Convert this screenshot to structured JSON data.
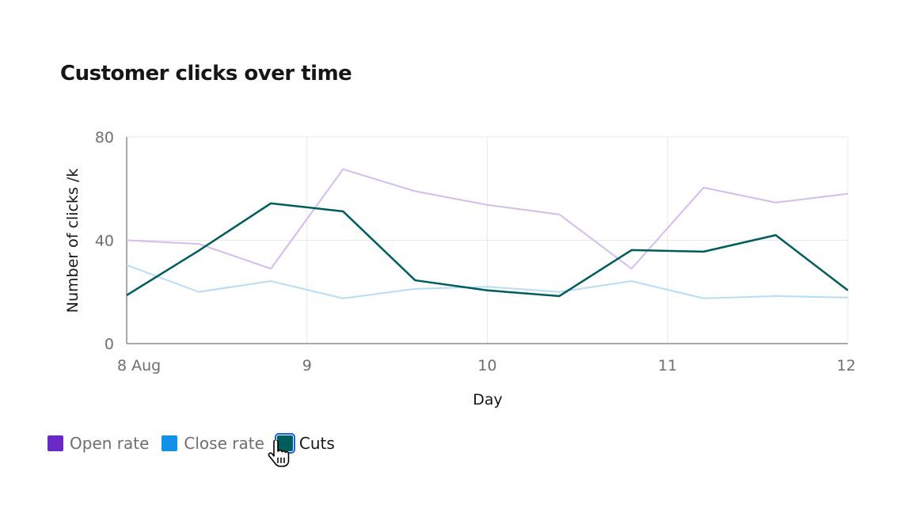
{
  "title": "Customer clicks over time",
  "colors": {
    "open_rate": "#6929c4",
    "close_rate": "#1192e8",
    "cuts": "#005d5d",
    "open_rate_line": "#d4bbf0",
    "close_rate_line": "#b6dcf7",
    "cuts_line": "#005d5d"
  },
  "legend": [
    {
      "label": "Open rate",
      "state": "inactive",
      "color": "#6929c4"
    },
    {
      "label": "Close rate",
      "state": "inactive",
      "color": "#1192e8"
    },
    {
      "label": "Cuts",
      "state": "active",
      "color": "#005d5d"
    }
  ],
  "chart_data": {
    "type": "line",
    "title": "Customer clicks over time",
    "xlabel": "Day",
    "ylabel": "Number of clicks /k",
    "xlim": [
      0,
      4
    ],
    "ylim": [
      0,
      80
    ],
    "x_ticks": [
      {
        "value": 0,
        "label": "8 Aug"
      },
      {
        "value": 1,
        "label": "9"
      },
      {
        "value": 2,
        "label": "10"
      },
      {
        "value": 3,
        "label": "11"
      },
      {
        "value": 4,
        "label": "12"
      }
    ],
    "y_ticks": [
      {
        "value": 0,
        "label": "0"
      },
      {
        "value": 40,
        "label": "40"
      },
      {
        "value": 80,
        "label": "80"
      }
    ],
    "grid": true,
    "legend_position": "bottom-left",
    "x": [
      0,
      0.4,
      0.8,
      1.2,
      1.6,
      2.0,
      2.4,
      2.8,
      3.2,
      3.6,
      4.0
    ],
    "series": [
      {
        "name": "Open rate",
        "key": "open_rate_line",
        "values": [
          40,
          38.6,
          29,
          67.5,
          59,
          53.7,
          50,
          29,
          60.4,
          54.6,
          58
        ]
      },
      {
        "name": "Close rate",
        "key": "close_rate_line",
        "values": [
          30.4,
          20,
          24.2,
          17.5,
          21.2,
          22,
          20,
          24.2,
          17.5,
          18.4,
          17.8
        ]
      },
      {
        "name": "Cuts",
        "key": "cuts_line",
        "values": [
          18.7,
          36,
          54.3,
          51.2,
          24.5,
          20.6,
          18.4,
          36.2,
          35.6,
          42,
          20.6
        ]
      }
    ]
  }
}
